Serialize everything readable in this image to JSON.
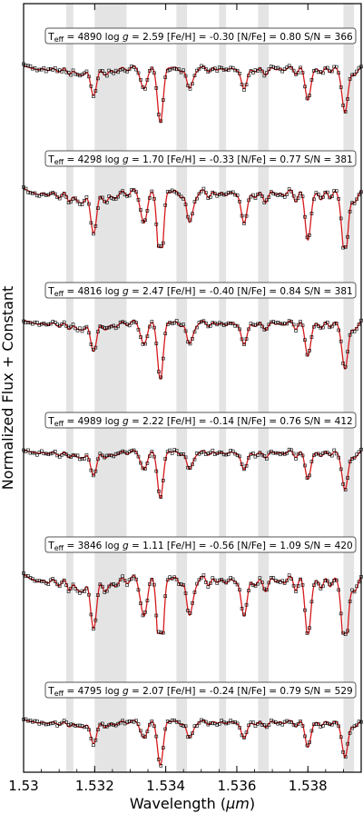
{
  "chart_data": {
    "type": "line",
    "xlabel_prefix": "Wavelength (",
    "xlabel_unit": "μm",
    "xlabel_suffix": ")",
    "ylabel": "Normalized Flux + Constant",
    "xlim": [
      1.53,
      1.5395
    ],
    "x_ticks": [
      "1.53",
      "1.532",
      "1.534",
      "1.536",
      "1.538"
    ],
    "x_tick_values": [
      1.53,
      1.532,
      1.534,
      1.536,
      1.538
    ],
    "shaded_regions": [
      [
        1.5312,
        1.5314
      ],
      [
        1.532,
        1.5329
      ],
      [
        1.5343,
        1.5346
      ],
      [
        1.5355,
        1.5357
      ],
      [
        1.5366,
        1.5369
      ],
      [
        1.539,
        1.5393
      ]
    ],
    "colors": {
      "model": "#d7191c",
      "observed": "#000000",
      "shade": "#e4e4e4"
    },
    "stars": [
      {
        "teff": "4890",
        "logg": "2.59",
        "feh": "-0.30",
        "nfe": "0.80",
        "sn": "366",
        "depth": 1.0
      },
      {
        "teff": "4298",
        "logg": "1.70",
        "feh": "-0.33",
        "nfe": "0.77",
        "sn": "381",
        "depth": 1.5
      },
      {
        "teff": "4816",
        "logg": "2.47",
        "feh": "-0.40",
        "nfe": "0.84",
        "sn": "381",
        "depth": 1.05
      },
      {
        "teff": "4989",
        "logg": "2.22",
        "feh": "-0.14",
        "nfe": "0.76",
        "sn": "412",
        "depth": 0.85
      },
      {
        "teff": "3846",
        "logg": "1.11",
        "feh": "-0.56",
        "nfe": "1.09",
        "sn": "420",
        "depth": 1.8
      },
      {
        "teff": "4795",
        "logg": "2.07",
        "feh": "-0.24",
        "nfe": "0.79",
        "sn": "529",
        "depth": 0.8
      }
    ],
    "label_parts": {
      "teff_prefix": "T",
      "teff_sub": "eff",
      "eq": " = ",
      "logg": " log ",
      "g": "g",
      "feh": " [Fe/H] = ",
      "nfe": " [N/Fe] = ",
      "sn": " S/N = "
    }
  }
}
